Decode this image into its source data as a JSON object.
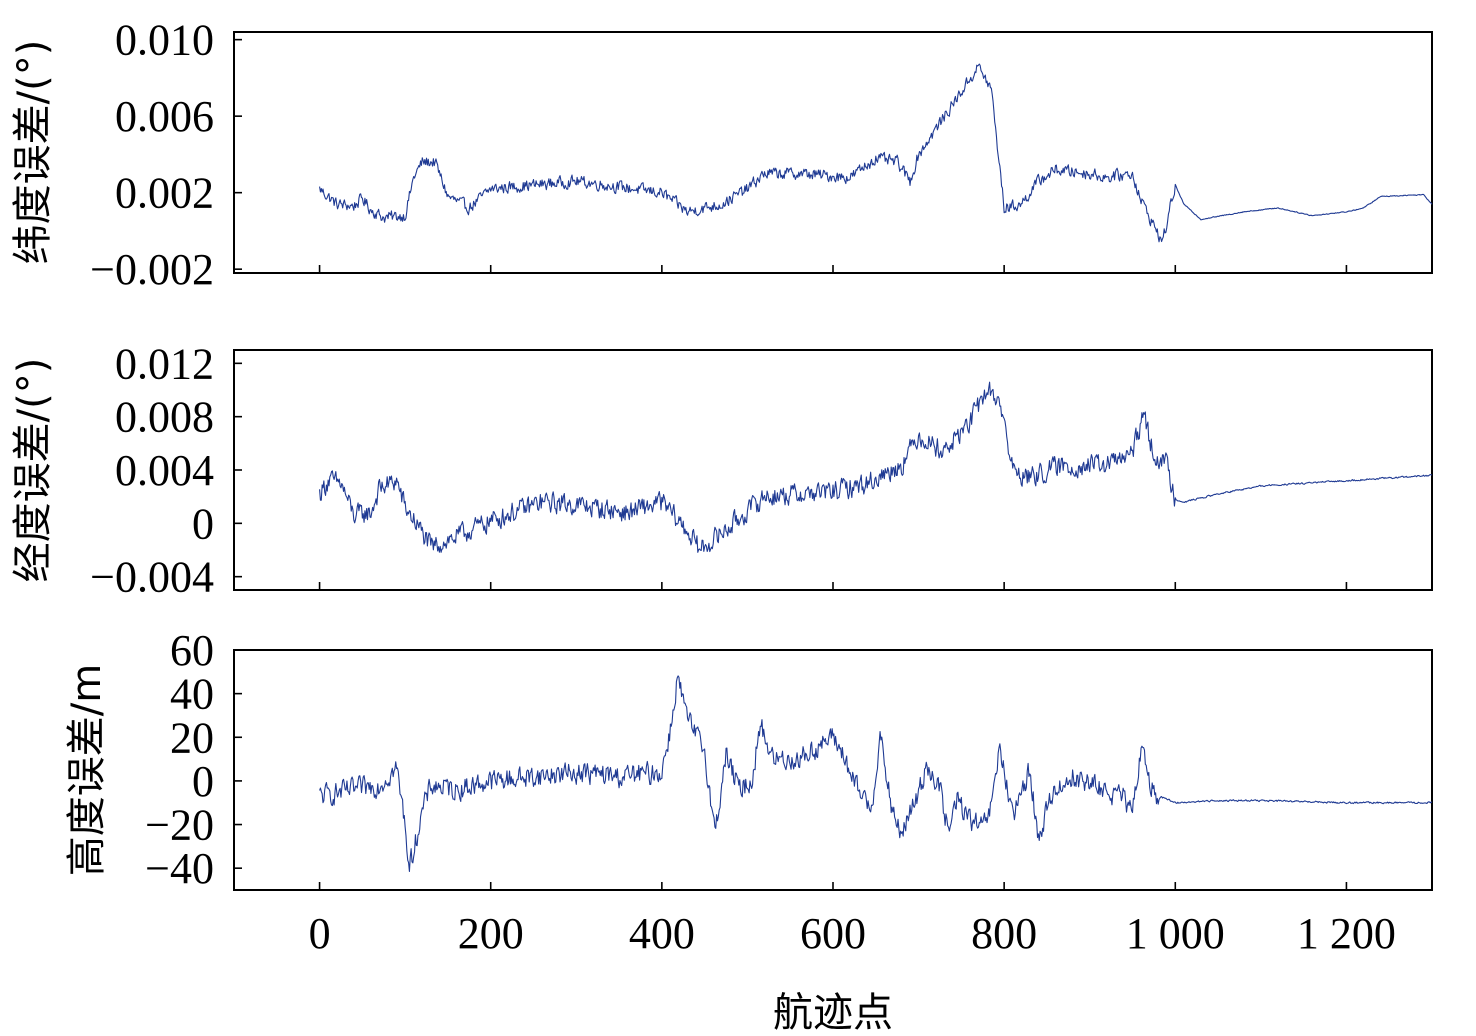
{
  "chart_data": [
    {
      "type": "line",
      "ylabel": "纬度误差/(°)",
      "xlim": [
        -100,
        1300
      ],
      "ylim": [
        -0.0022,
        0.0104
      ],
      "xticks": [
        0,
        200,
        400,
        600,
        800,
        1000,
        1200
      ],
      "yticks": [
        -0.002,
        0.002,
        0.006,
        0.01
      ],
      "ytick_labels": [
        "−0.002",
        "0.002",
        "0.006",
        "0.010"
      ],
      "series": [
        {
          "color": "#1f3a93",
          "noise": 0.00028,
          "keypoints": [
            [
              0,
              0.0022
            ],
            [
              10,
              0.0018
            ],
            [
              20,
              0.0014
            ],
            [
              40,
              0.0013
            ],
            [
              50,
              0.0017
            ],
            [
              60,
              0.0011
            ],
            [
              75,
              0.0007
            ],
            [
              100,
              0.0008
            ],
            [
              110,
              0.0028
            ],
            [
              120,
              0.0036
            ],
            [
              135,
              0.0036
            ],
            [
              150,
              0.0018
            ],
            [
              175,
              0.0012
            ],
            [
              200,
              0.0022
            ],
            [
              300,
              0.0026
            ],
            [
              400,
              0.002
            ],
            [
              430,
              0.001
            ],
            [
              470,
              0.0014
            ],
            [
              500,
              0.0022
            ],
            [
              520,
              0.003
            ],
            [
              560,
              0.003
            ],
            [
              620,
              0.0028
            ],
            [
              650,
              0.0038
            ],
            [
              675,
              0.0036
            ],
            [
              690,
              0.0026
            ],
            [
              700,
              0.004
            ],
            [
              770,
              0.0086
            ],
            [
              785,
              0.0074
            ],
            [
              800,
              0.0012
            ],
            [
              820,
              0.0014
            ],
            [
              840,
              0.0026
            ],
            [
              860,
              0.0032
            ],
            [
              900,
              0.003
            ],
            [
              920,
              0.0028
            ],
            [
              950,
              0.003
            ],
            [
              960,
              0.0016
            ],
            [
              985,
              -0.0006
            ],
            [
              1000,
              0.0024
            ],
            [
              1010,
              0.0014
            ],
            [
              1030,
              0.0006
            ],
            [
              1080,
              0.001
            ],
            [
              1120,
              0.0012
            ],
            [
              1160,
              0.0008
            ],
            [
              1200,
              0.001
            ],
            [
              1220,
              0.0012
            ],
            [
              1240,
              0.0018
            ],
            [
              1290,
              0.0019
            ],
            [
              1300,
              0.0014
            ]
          ],
          "quiet_after": 1000
        }
      ]
    },
    {
      "type": "line",
      "ylabel": "经度误差/(°)",
      "xlim": [
        -100,
        1300
      ],
      "ylim": [
        -0.005,
        0.013
      ],
      "xticks": [
        0,
        200,
        400,
        600,
        800,
        1000,
        1200
      ],
      "yticks": [
        -0.004,
        0,
        0.004,
        0.008,
        0.012
      ],
      "ytick_labels": [
        "−0.004",
        "0",
        "0.004",
        "0.008",
        "0.012"
      ],
      "series": [
        {
          "color": "#1f3a93",
          "noise": 0.0007,
          "keypoints": [
            [
              0,
              0.0022
            ],
            [
              10,
              0.0032
            ],
            [
              25,
              0.003
            ],
            [
              40,
              0.0006
            ],
            [
              60,
              0.0008
            ],
            [
              70,
              0.0026
            ],
            [
              90,
              0.0032
            ],
            [
              100,
              0.0012
            ],
            [
              115,
              -0.0002
            ],
            [
              130,
              -0.0018
            ],
            [
              160,
              -0.001
            ],
            [
              200,
              0.0002
            ],
            [
              260,
              0.0016
            ],
            [
              300,
              0.0014
            ],
            [
              360,
              0.0008
            ],
            [
              400,
              0.0016
            ],
            [
              430,
              -0.0006
            ],
            [
              445,
              -0.002
            ],
            [
              480,
              -0.0002
            ],
            [
              520,
              0.002
            ],
            [
              600,
              0.0024
            ],
            [
              640,
              0.003
            ],
            [
              680,
              0.0044
            ],
            [
              700,
              0.0066
            ],
            [
              730,
              0.0054
            ],
            [
              760,
              0.0076
            ],
            [
              780,
              0.01
            ],
            [
              795,
              0.0092
            ],
            [
              810,
              0.004
            ],
            [
              830,
              0.0034
            ],
            [
              860,
              0.0042
            ],
            [
              920,
              0.0044
            ],
            [
              950,
              0.0052
            ],
            [
              962,
              0.0082
            ],
            [
              975,
              0.0052
            ],
            [
              990,
              0.0044
            ],
            [
              1000,
              0.0018
            ],
            [
              1010,
              0.0016
            ],
            [
              1050,
              0.0022
            ],
            [
              1100,
              0.0028
            ],
            [
              1200,
              0.0032
            ],
            [
              1300,
              0.0036
            ]
          ],
          "quiet_after": 1000
        }
      ]
    },
    {
      "type": "line",
      "xlabel": "航迹点",
      "ylabel": "高度误差/m",
      "xlim": [
        -100,
        1300
      ],
      "ylim": [
        -50,
        60
      ],
      "xticks": [
        0,
        200,
        400,
        600,
        800,
        1000,
        1200
      ],
      "xtick_labels": [
        "0",
        "200",
        "400",
        "600",
        "800",
        "1 000",
        "1 200"
      ],
      "yticks": [
        -40,
        -20,
        0,
        20,
        40,
        60
      ],
      "ytick_labels": [
        "−40",
        "−20",
        "0",
        "20",
        "40",
        "60"
      ],
      "series": [
        {
          "color": "#1f3a93",
          "noise": 4.5,
          "keypoints": [
            [
              0,
              -7
            ],
            [
              40,
              -4
            ],
            [
              70,
              -2
            ],
            [
              90,
              6
            ],
            [
              100,
              -20
            ],
            [
              105,
              -40
            ],
            [
              120,
              -14
            ],
            [
              130,
              -2
            ],
            [
              160,
              -4
            ],
            [
              200,
              0
            ],
            [
              300,
              4
            ],
            [
              350,
              2
            ],
            [
              400,
              4
            ],
            [
              412,
              28
            ],
            [
              418,
              48
            ],
            [
              430,
              28
            ],
            [
              450,
              14
            ],
            [
              462,
              -24
            ],
            [
              475,
              12
            ],
            [
              490,
              -4
            ],
            [
              505,
              0
            ],
            [
              515,
              26
            ],
            [
              530,
              10
            ],
            [
              560,
              10
            ],
            [
              600,
              20
            ],
            [
              610,
              14
            ],
            [
              625,
              -2
            ],
            [
              645,
              -12
            ],
            [
              655,
              20
            ],
            [
              670,
              -16
            ],
            [
              680,
              -24
            ],
            [
              700,
              -6
            ],
            [
              710,
              8
            ],
            [
              725,
              -4
            ],
            [
              735,
              -24
            ],
            [
              745,
              -8
            ],
            [
              760,
              -18
            ],
            [
              775,
              -22
            ],
            [
              785,
              -12
            ],
            [
              795,
              16
            ],
            [
              810,
              -18
            ],
            [
              830,
              6
            ],
            [
              840,
              -28
            ],
            [
              855,
              -6
            ],
            [
              880,
              2
            ],
            [
              940,
              -8
            ],
            [
              950,
              -16
            ],
            [
              960,
              16
            ],
            [
              975,
              -6
            ],
            [
              1000,
              -10
            ],
            [
              1050,
              -9
            ],
            [
              1100,
              -9
            ],
            [
              1200,
              -10
            ],
            [
              1300,
              -10
            ]
          ],
          "quiet_after": 980
        }
      ]
    }
  ]
}
